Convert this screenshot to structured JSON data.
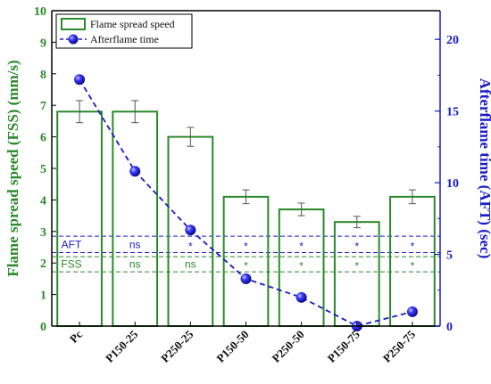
{
  "chart_data": {
    "type": "bar+line",
    "title": "",
    "categories": [
      "Pc",
      "P150-25",
      "P250-25",
      "P150-50",
      "P250-50",
      "P150-75",
      "P250-75"
    ],
    "ylabel_left": "Flame spread speed (FSS) (mm/s)",
    "ylabel_right": "Afterflame time (AFT) (sec)",
    "ylim_left": [
      0,
      10
    ],
    "ylim_right": [
      0,
      22
    ],
    "yticks_left": [
      "0",
      "1",
      "2",
      "3",
      "4",
      "5",
      "6",
      "7",
      "8",
      "9",
      "10"
    ],
    "yticks_right": [
      "0",
      "5",
      "10",
      "15",
      "20"
    ],
    "series": [
      {
        "name": "Flame spread speed",
        "kind": "bar",
        "axis": "left",
        "values": [
          6.8,
          6.8,
          6.0,
          4.1,
          3.7,
          3.3,
          4.1
        ],
        "errors": [
          0.35,
          0.35,
          0.3,
          0.22,
          0.2,
          0.18,
          0.22
        ]
      },
      {
        "name": "Afterflame time",
        "kind": "line",
        "axis": "right",
        "values": [
          17.2,
          10.8,
          6.7,
          3.3,
          2.0,
          0.0,
          1.0
        ]
      }
    ],
    "significance_rows": [
      {
        "label": "AFT",
        "marks": [
          "",
          "ns",
          "*",
          "*",
          "*",
          "*",
          "*"
        ]
      },
      {
        "label": "FSS",
        "marks": [
          "",
          "ns",
          "ns",
          "*",
          "*",
          "*",
          "*"
        ]
      }
    ],
    "legend_position": "top-left",
    "colors": {
      "bar": "#2a8a2a",
      "line": "#1a1acc",
      "aft_row": "#1a1acc",
      "fss_row": "#2a8a2a"
    }
  }
}
